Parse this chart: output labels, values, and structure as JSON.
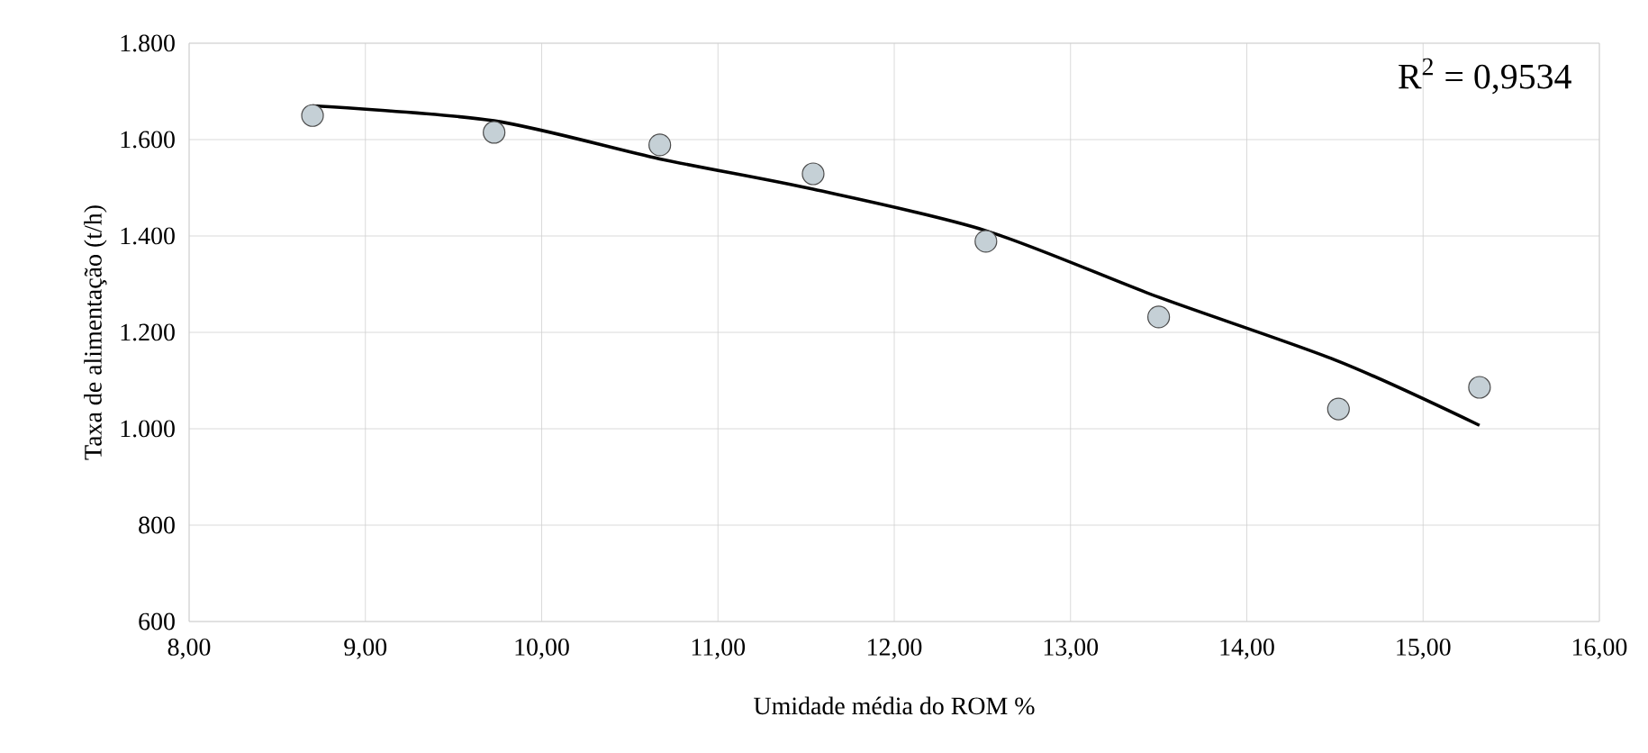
{
  "chart_data": {
    "type": "scatter",
    "xlabel": "Umidade média do ROM %",
    "ylabel": "Taxa de alimentação  (t/h)",
    "xlim": [
      8,
      16
    ],
    "ylim": [
      600,
      1800
    ],
    "xticks": [
      {
        "value": 8,
        "label": "8,00"
      },
      {
        "value": 9,
        "label": "9,00"
      },
      {
        "value": 10,
        "label": "10,00"
      },
      {
        "value": 11,
        "label": "11,00"
      },
      {
        "value": 12,
        "label": "12,00"
      },
      {
        "value": 13,
        "label": "13,00"
      },
      {
        "value": 14,
        "label": "14,00"
      },
      {
        "value": 15,
        "label": "15,00"
      },
      {
        "value": 16,
        "label": "16,00"
      }
    ],
    "yticks": [
      {
        "value": 600,
        "label": "600"
      },
      {
        "value": 800,
        "label": "800"
      },
      {
        "value": 1000,
        "label": "1.000"
      },
      {
        "value": 1200,
        "label": "1.200"
      },
      {
        "value": 1400,
        "label": "1.400"
      },
      {
        "value": 1600,
        "label": "1.600"
      },
      {
        "value": 1800,
        "label": "1.800"
      }
    ],
    "grid": true,
    "annotations": [
      "R$^{2}$ = 0,9534"
    ],
    "series": [
      {
        "type": "scatter",
        "marker": "circle",
        "color": "#c5d0d6",
        "x": [
          8.7,
          9.73,
          10.67,
          11.54,
          12.52,
          13.5,
          14.52,
          15.32
        ],
        "values": [
          1650,
          1615,
          1589,
          1529,
          1389,
          1232,
          1041,
          1086
        ]
      },
      {
        "type": "line",
        "marker": "none",
        "color": "#000000",
        "x": [
          8.7,
          9.73,
          10.67,
          11.54,
          12.52,
          13.5,
          14.52,
          15.32
        ],
        "values": [
          1670,
          1639,
          1560,
          1497,
          1411,
          1273,
          1140,
          1007
        ]
      }
    ]
  }
}
